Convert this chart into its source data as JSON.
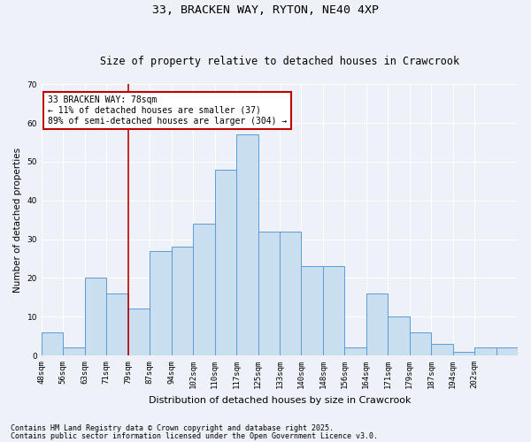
{
  "title1": "33, BRACKEN WAY, RYTON, NE40 4XP",
  "title2": "Size of property relative to detached houses in Crawcrook",
  "xlabel": "Distribution of detached houses by size in Crawcrook",
  "ylabel": "Number of detached properties",
  "bar_values": [
    6,
    2,
    20,
    16,
    12,
    27,
    28,
    34,
    48,
    57,
    32,
    32,
    23,
    23,
    2,
    16,
    10,
    6,
    3,
    1,
    2,
    2
  ],
  "bin_labels": [
    "48sqm",
    "56sqm",
    "63sqm",
    "71sqm",
    "79sqm",
    "87sqm",
    "94sqm",
    "102sqm",
    "110sqm",
    "117sqm",
    "125sqm",
    "133sqm",
    "140sqm",
    "148sqm",
    "156sqm",
    "164sqm",
    "171sqm",
    "179sqm",
    "187sqm",
    "194sqm",
    "202sqm"
  ],
  "bar_color": "#c9dff0",
  "bar_edge_color": "#5b9bd5",
  "vline_x": 4.0,
  "vline_color": "#c00000",
  "annotation_line1": "33 BRACKEN WAY: 78sqm",
  "annotation_line2": "← 11% of detached houses are smaller (37)",
  "annotation_line3": "89% of semi-detached houses are larger (304) →",
  "annotation_box_color": "#ffffff",
  "annotation_box_edge": "#c00000",
  "ylim": [
    0,
    70
  ],
  "yticks": [
    0,
    10,
    20,
    30,
    40,
    50,
    60,
    70
  ],
  "footnote1": "Contains HM Land Registry data © Crown copyright and database right 2025.",
  "footnote2": "Contains public sector information licensed under the Open Government Licence v3.0.",
  "background_color": "#eef2f8",
  "title1_fontsize": 9.5,
  "title2_fontsize": 8.5,
  "xlabel_fontsize": 8,
  "ylabel_fontsize": 7.5,
  "tick_fontsize": 6.5,
  "annotation_fontsize": 7,
  "footnote_fontsize": 6
}
